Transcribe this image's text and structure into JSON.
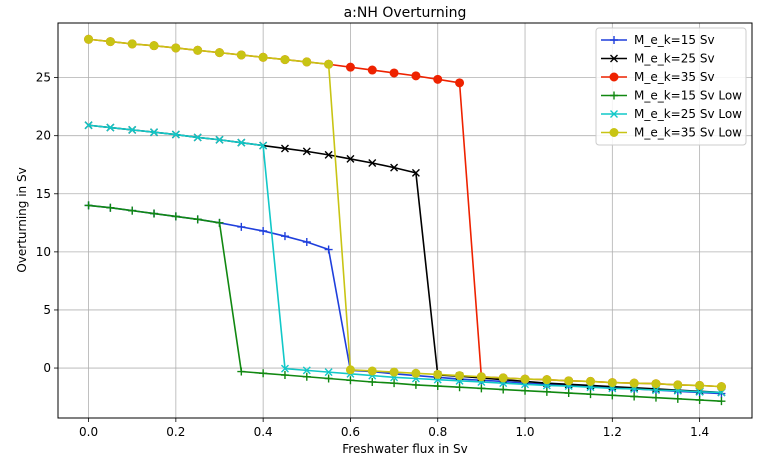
{
  "chart_data": {
    "type": "line",
    "title": "a:NH Overturning",
    "xlabel": "Freshwater flux in Sv",
    "ylabel": "Overturning in Sv",
    "xlim": [
      -0.07,
      1.52
    ],
    "ylim": [
      -4.3,
      29.7
    ],
    "xticks": [
      "0.0",
      "0.2",
      "0.4",
      "0.6",
      "0.8",
      "1.0",
      "1.2",
      "1.4"
    ],
    "yticks": [
      "0",
      "5",
      "10",
      "15",
      "20",
      "25"
    ],
    "xtick_values": [
      0,
      0.2,
      0.4,
      0.6,
      0.8,
      1.0,
      1.2,
      1.4
    ],
    "ytick_values": [
      0,
      5,
      10,
      15,
      20,
      25
    ],
    "grid": true,
    "legend_position": "top-right",
    "series": [
      {
        "name": "M_e_k=15 Sv",
        "color": "#1f3fdc",
        "marker": "plus",
        "x": [
          0,
          0.05,
          0.1,
          0.15,
          0.2,
          0.25,
          0.3,
          0.35,
          0.4,
          0.45,
          0.5,
          0.55,
          0.6,
          0.65,
          0.7,
          0.75,
          0.8,
          0.85,
          0.9,
          0.95,
          1.0,
          1.05,
          1.1,
          1.15,
          1.2,
          1.25,
          1.3,
          1.35,
          1.4,
          1.45
        ],
        "y": [
          14.0,
          13.8,
          13.55,
          13.3,
          13.05,
          12.8,
          12.5,
          12.15,
          11.8,
          11.35,
          10.85,
          10.2,
          -0.2,
          -0.3,
          -0.5,
          -0.65,
          -0.8,
          -0.95,
          -1.05,
          -1.15,
          -1.3,
          -1.4,
          -1.5,
          -1.6,
          -1.7,
          -1.8,
          -1.9,
          -2.0,
          -2.1,
          -2.2
        ]
      },
      {
        "name": "M_e_k=25 Sv",
        "color": "#000000",
        "marker": "x",
        "x": [
          0,
          0.05,
          0.1,
          0.15,
          0.2,
          0.25,
          0.3,
          0.35,
          0.4,
          0.45,
          0.5,
          0.55,
          0.6,
          0.65,
          0.7,
          0.75,
          0.8,
          0.85,
          0.9,
          0.95,
          1.0,
          1.05,
          1.1,
          1.15,
          1.2,
          1.25,
          1.3,
          1.35,
          1.4,
          1.45
        ],
        "y": [
          20.9,
          20.7,
          20.5,
          20.3,
          20.1,
          19.85,
          19.65,
          19.4,
          19.15,
          18.9,
          18.65,
          18.35,
          18.0,
          17.65,
          17.25,
          16.8,
          -0.6,
          -0.7,
          -0.85,
          -1.0,
          -1.15,
          -1.3,
          -1.4,
          -1.5,
          -1.6,
          -1.7,
          -1.8,
          -1.9,
          -2.0,
          -2.1
        ]
      },
      {
        "name": "M_e_k=35 Sv",
        "color": "#ee2200",
        "marker": "circle",
        "x": [
          0,
          0.05,
          0.1,
          0.15,
          0.2,
          0.25,
          0.3,
          0.35,
          0.4,
          0.45,
          0.5,
          0.55,
          0.6,
          0.65,
          0.7,
          0.75,
          0.8,
          0.85,
          0.9,
          0.95,
          1.0,
          1.05,
          1.1,
          1.15,
          1.2,
          1.25,
          1.3,
          1.35,
          1.4,
          1.45
        ],
        "y": [
          28.3,
          28.1,
          27.9,
          27.75,
          27.55,
          27.35,
          27.15,
          26.95,
          26.75,
          26.55,
          26.35,
          26.15,
          25.9,
          25.65,
          25.4,
          25.15,
          24.85,
          24.55,
          -0.75,
          -0.85,
          -0.95,
          -1.0,
          -1.1,
          -1.15,
          -1.25,
          -1.3,
          -1.35,
          -1.45,
          -1.5,
          -1.6
        ]
      },
      {
        "name": "M_e_k=15 Sv Low",
        "color": "#118811",
        "marker": "plus",
        "x": [
          0,
          0.05,
          0.1,
          0.15,
          0.2,
          0.25,
          0.3,
          0.35,
          0.4,
          0.45,
          0.5,
          0.55,
          0.6,
          0.65,
          0.7,
          0.75,
          0.8,
          0.85,
          0.9,
          0.95,
          1.0,
          1.05,
          1.1,
          1.15,
          1.2,
          1.25,
          1.3,
          1.35,
          1.4,
          1.45
        ],
        "y": [
          14.0,
          13.8,
          13.55,
          13.3,
          13.05,
          12.8,
          12.5,
          -0.3,
          -0.45,
          -0.6,
          -0.75,
          -0.9,
          -1.05,
          -1.2,
          -1.3,
          -1.45,
          -1.55,
          -1.65,
          -1.75,
          -1.85,
          -1.95,
          -2.05,
          -2.15,
          -2.25,
          -2.35,
          -2.45,
          -2.55,
          -2.65,
          -2.75,
          -2.85
        ]
      },
      {
        "name": "M_e_k=25 Sv Low",
        "color": "#11c8c8",
        "marker": "x",
        "x": [
          0,
          0.05,
          0.1,
          0.15,
          0.2,
          0.25,
          0.3,
          0.35,
          0.4,
          0.45,
          0.5,
          0.55,
          0.6,
          0.65,
          0.7,
          0.75,
          0.8,
          0.85,
          0.9,
          0.95,
          1.0,
          1.05,
          1.1,
          1.15,
          1.2,
          1.25,
          1.3,
          1.35,
          1.4,
          1.45
        ],
        "y": [
          20.9,
          20.7,
          20.5,
          20.3,
          20.1,
          19.85,
          19.65,
          19.4,
          19.15,
          -0.05,
          -0.2,
          -0.35,
          -0.5,
          -0.65,
          -0.8,
          -0.9,
          -1.0,
          -1.1,
          -1.2,
          -1.3,
          -1.4,
          -1.5,
          -1.55,
          -1.65,
          -1.75,
          -1.8,
          -1.9,
          -1.95,
          -2.05,
          -2.1
        ]
      },
      {
        "name": "M_e_k=35 Sv Low",
        "color": "#c8c414",
        "marker": "circle",
        "x": [
          0,
          0.05,
          0.1,
          0.15,
          0.2,
          0.25,
          0.3,
          0.35,
          0.4,
          0.45,
          0.5,
          0.55,
          0.6,
          0.65,
          0.7,
          0.75,
          0.8,
          0.85,
          0.9,
          0.95,
          1.0,
          1.05,
          1.1,
          1.15,
          1.2,
          1.25,
          1.3,
          1.35,
          1.4,
          1.45
        ],
        "y": [
          28.3,
          28.1,
          27.9,
          27.75,
          27.55,
          27.35,
          27.15,
          26.95,
          26.75,
          26.55,
          26.35,
          26.15,
          -0.15,
          -0.25,
          -0.35,
          -0.45,
          -0.55,
          -0.65,
          -0.75,
          -0.85,
          -0.95,
          -1.0,
          -1.1,
          -1.15,
          -1.25,
          -1.3,
          -1.35,
          -1.45,
          -1.5,
          -1.6
        ]
      }
    ]
  }
}
